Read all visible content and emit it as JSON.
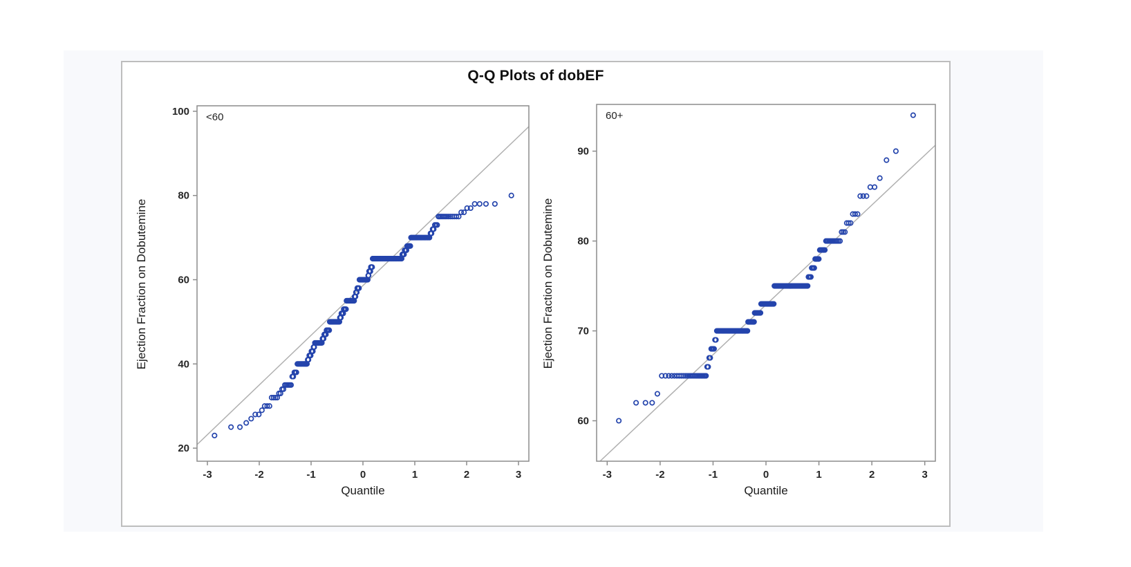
{
  "page": {
    "background": "#ffffff",
    "results_body_background": "#f8f9fc",
    "graph_border_color": "#bdbdbd"
  },
  "chart_data": {
    "type": "scatter",
    "subtype": "qq-plot",
    "title": "Q-Q Plots of dobEF",
    "xlabel": "Quantile",
    "ylabel": "Ejection Fraction on Dobutemine",
    "marker_color": "#2444ac",
    "reference_line_color": "#b0b0b0",
    "frame_color": "#8c8c8c",
    "tick_label_color": "#262626",
    "legend": "none",
    "grid": "off",
    "x_rule": "y values sorted ascending; x = standard normal quantile of (i - 0.375)/(n + 0.25)",
    "panels": [
      {
        "group_label": "<60",
        "n": 297,
        "xlim": [
          -3.2,
          3.2
        ],
        "ylim": [
          16.9,
          101.3
        ],
        "xticks": [
          -3,
          -2,
          -1,
          0,
          1,
          2,
          3
        ],
        "yticks": [
          20,
          40,
          60,
          80,
          100
        ],
        "reference_line": {
          "intercept": 58.6,
          "slope": 11.8
        },
        "value_counts": [
          [
            23,
            1
          ],
          [
            25,
            2
          ],
          [
            26,
            1
          ],
          [
            27,
            1
          ],
          [
            28,
            2
          ],
          [
            29,
            1
          ],
          [
            30,
            3
          ],
          [
            32,
            4
          ],
          [
            33,
            2
          ],
          [
            34,
            2
          ],
          [
            35,
            6
          ],
          [
            37,
            2
          ],
          [
            38,
            3
          ],
          [
            40,
            12
          ],
          [
            41,
            2
          ],
          [
            42,
            3
          ],
          [
            43,
            3
          ],
          [
            44,
            2
          ],
          [
            45,
            12
          ],
          [
            46,
            3
          ],
          [
            47,
            4
          ],
          [
            48,
            6
          ],
          [
            50,
            20
          ],
          [
            51,
            3
          ],
          [
            52,
            5
          ],
          [
            53,
            6
          ],
          [
            55,
            18
          ],
          [
            56,
            3
          ],
          [
            57,
            3
          ],
          [
            58,
            5
          ],
          [
            60,
            20
          ],
          [
            61,
            2
          ],
          [
            62,
            4
          ],
          [
            63,
            4
          ],
          [
            65,
            60
          ],
          [
            66,
            4
          ],
          [
            67,
            4
          ],
          [
            68,
            6
          ],
          [
            70,
            24
          ],
          [
            71,
            2
          ],
          [
            72,
            2
          ],
          [
            73,
            3
          ],
          [
            75,
            13
          ],
          [
            76,
            2
          ],
          [
            77,
            2
          ],
          [
            78,
            4
          ],
          [
            80,
            1
          ]
        ]
      },
      {
        "group_label": "60+",
        "n": 230,
        "xlim": [
          -3.2,
          3.2
        ],
        "ylim": [
          55.5,
          95.2
        ],
        "xticks": [
          -3,
          -2,
          -1,
          0,
          1,
          2,
          3
        ],
        "yticks": [
          60,
          70,
          80,
          90
        ],
        "reference_line": {
          "intercept": 72.9,
          "slope": 5.55
        },
        "value_counts": [
          [
            60,
            1
          ],
          [
            62,
            3
          ],
          [
            63,
            1
          ],
          [
            65,
            25
          ],
          [
            66,
            2
          ],
          [
            67,
            2
          ],
          [
            68,
            4
          ],
          [
            69,
            2
          ],
          [
            70,
            44
          ],
          [
            71,
            11
          ],
          [
            72,
            11
          ],
          [
            73,
            23
          ],
          [
            75,
            52
          ],
          [
            76,
            4
          ],
          [
            77,
            4
          ],
          [
            78,
            5
          ],
          [
            79,
            6
          ],
          [
            80,
            12
          ],
          [
            81,
            3
          ],
          [
            82,
            3
          ],
          [
            83,
            3
          ],
          [
            85,
            3
          ],
          [
            86,
            2
          ],
          [
            87,
            1
          ],
          [
            89,
            1
          ],
          [
            90,
            1
          ],
          [
            94,
            1
          ]
        ]
      }
    ]
  }
}
